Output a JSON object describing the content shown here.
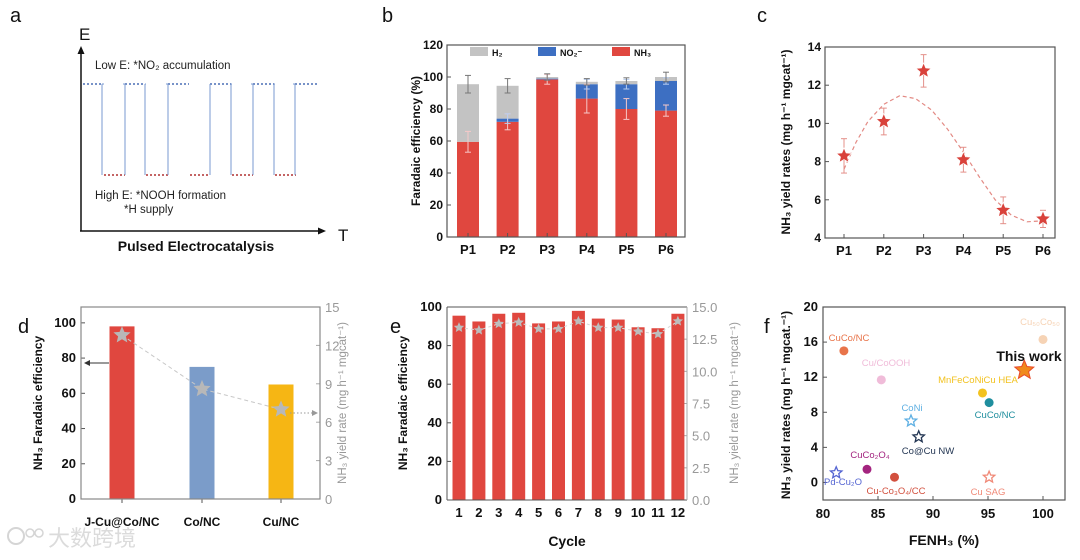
{
  "panel_labels": [
    "a",
    "b",
    "c",
    "d",
    "e",
    "f"
  ],
  "watermark": {
    "text": "大数跨境",
    "logo": "100"
  },
  "diagram_a": {
    "y_axis": "E",
    "x_axis": "T",
    "top_note": "Low E: *NO₂ accumulation",
    "bottom_note_1": "High E: *NOOH formation",
    "bottom_note_2": "*H  supply",
    "title": "Pulsed Electrocatalysis",
    "colors": {
      "high_level": "#4a6fb5",
      "low_level": "#b03030",
      "wave": "#7a9ad0"
    }
  },
  "chart_data": [
    {
      "id": "b",
      "type": "bar",
      "stacked": true,
      "categories": [
        "P1",
        "P2",
        "P3",
        "P4",
        "P5",
        "P6"
      ],
      "series": [
        {
          "name": "NH₃",
          "color": "#e0473f",
          "values": [
            59.5,
            72,
            98.5,
            86.5,
            80,
            79
          ],
          "errors": [
            6.5,
            5,
            3,
            9,
            6.5,
            3.5
          ]
        },
        {
          "name": "NO₂⁻",
          "color": "#3d6fc2",
          "values": [
            0,
            2,
            0.5,
            9,
            15.5,
            18.5
          ],
          "errors": [
            0,
            3,
            0,
            3,
            3,
            2
          ]
        },
        {
          "name": "H₂",
          "color": "#c3c3c3",
          "values": [
            36,
            20.5,
            1,
            1.5,
            2,
            2.5
          ],
          "errors": [
            5.5,
            4.5,
            2,
            2,
            2,
            3
          ]
        }
      ],
      "legend_order": [
        "H₂",
        "NO₂⁻",
        "NH₃"
      ],
      "ylabel": "Faradaic efficiency (%)",
      "xlabel": "",
      "ylim": [
        0,
        120
      ],
      "yticks": [
        0,
        20,
        40,
        60,
        80,
        100,
        120
      ],
      "legend_placement": "top"
    },
    {
      "id": "c",
      "type": "scatter",
      "categories": [
        "P1",
        "P2",
        "P3",
        "P4",
        "P5",
        "P6"
      ],
      "values": [
        8.3,
        10.1,
        12.75,
        8.1,
        5.45,
        5.0
      ],
      "errors": [
        0.9,
        0.7,
        0.85,
        0.65,
        0.7,
        0.45
      ],
      "fit_curve": {
        "x": [
          1,
          1.3,
          1.6,
          2,
          2.4,
          2.8,
          3.2,
          3.6,
          4,
          4.4,
          4.8,
          5.2,
          5.6,
          6
        ],
        "y": [
          7.6,
          9.0,
          10.1,
          11.0,
          11.45,
          11.3,
          10.7,
          9.7,
          8.5,
          7.2,
          6.0,
          5.2,
          4.85,
          4.9
        ]
      },
      "color": "#d9423b",
      "ylabel": "NH₃ yield rates (mg h⁻¹ mgcat⁻¹)",
      "ylim": [
        4,
        14
      ],
      "yticks": [
        4,
        6,
        8,
        10,
        12,
        14
      ]
    },
    {
      "id": "d",
      "type": "bar",
      "categories": [
        "J-Cu@Co/NC",
        "Co/NC",
        "Cu/NC"
      ],
      "values": [
        98,
        75,
        65
      ],
      "colors": [
        "#e0473f",
        "#7b9cc9",
        "#f6b614"
      ],
      "secondary": {
        "name": "yield rate",
        "values": [
          12.8,
          8.6,
          7.0
        ],
        "color": "#b8b8b8",
        "ylim": [
          0,
          15
        ],
        "yticks": [
          0,
          3,
          6,
          9,
          12,
          15
        ]
      },
      "ylabel": "NH₃ Faradaic efficiency",
      "ylabel_right": "NH₃ yield rate (mg h⁻¹ mgcat⁻¹)",
      "ylim": [
        0,
        109
      ],
      "yticks": [
        0,
        20,
        40,
        60,
        80,
        100
      ]
    },
    {
      "id": "e",
      "type": "bar",
      "categories": [
        "1",
        "2",
        "3",
        "4",
        "5",
        "6",
        "7",
        "8",
        "9",
        "10",
        "11",
        "12"
      ],
      "values": [
        95.5,
        92.5,
        96.5,
        97,
        91.5,
        92.5,
        98,
        94,
        93.5,
        89.5,
        89,
        96.5
      ],
      "color": "#e0473f",
      "secondary": {
        "name": "yield rate",
        "values": [
          13.4,
          13.2,
          13.7,
          13.8,
          13.3,
          13.3,
          13.9,
          13.4,
          13.4,
          13.1,
          12.9,
          13.9
        ],
        "color": "#b8b8b8",
        "ylim": [
          0,
          15
        ],
        "yticks": [
          "0.0",
          "2.5",
          "5.0",
          "7.5",
          "10.0",
          "12.5",
          "15.0"
        ]
      },
      "xlabel": "Cycle",
      "ylabel": "NH₃ Faradaic efficiency",
      "ylabel_right": "NH₃ yield rate (mg h⁻¹ mgcat⁻¹)",
      "ylim": [
        0,
        100
      ],
      "yticks": [
        0,
        20,
        40,
        60,
        80,
        100
      ]
    },
    {
      "id": "f",
      "type": "scatter",
      "xlabel": "FENH₃ (%)",
      "ylabel": "NH₃ yield rates (mg h⁻¹ mgcat.⁻¹)",
      "xlim": [
        80,
        102
      ],
      "ylim": [
        -2,
        20
      ],
      "xticks": [
        80,
        85,
        90,
        95,
        100
      ],
      "yticks": [
        0,
        4,
        8,
        12,
        16,
        20
      ],
      "points": [
        {
          "label": "CuCo/NC",
          "x": 81.9,
          "y": 15.0,
          "marker": "circle",
          "color": "#e8744a"
        },
        {
          "label": "Cu/CoOOH",
          "x": 85.3,
          "y": 11.7,
          "marker": "circle",
          "color": "#f0bcd9"
        },
        {
          "label": "Cu₅₀Co₅₀",
          "x": 100.0,
          "y": 16.3,
          "marker": "circle",
          "color": "#f6d3b5"
        },
        {
          "label": "This work",
          "x": 98.3,
          "y": 12.8,
          "marker": "star",
          "color": "#f08a1c"
        },
        {
          "label": "MnFeCoNiCu HEA",
          "x": 94.5,
          "y": 10.2,
          "marker": "circle",
          "color": "#f2c21f"
        },
        {
          "label": "CuCo/NC",
          "x": 95.1,
          "y": 9.1,
          "marker": "circle",
          "color": "#1f8e9e"
        },
        {
          "label": "CoNi",
          "x": 88.0,
          "y": 7.0,
          "marker": "star",
          "color": "#5fb0e3"
        },
        {
          "label": "Co@Cu NW",
          "x": 88.7,
          "y": 5.2,
          "marker": "star",
          "color": "#223552"
        },
        {
          "label": "CuCo₂O₄",
          "x": 84.0,
          "y": 1.5,
          "marker": "circle",
          "color": "#a3247f"
        },
        {
          "label": "Pd-Cu₂O",
          "x": 81.2,
          "y": 1.1,
          "marker": "star",
          "color": "#5565d2"
        },
        {
          "label": "Cu-Co₃O₄/CC",
          "x": 86.5,
          "y": 0.6,
          "marker": "circle",
          "color": "#d2503e"
        },
        {
          "label": "Cu SAG",
          "x": 95.1,
          "y": 0.6,
          "marker": "star",
          "color": "#f08a78"
        }
      ]
    }
  ]
}
